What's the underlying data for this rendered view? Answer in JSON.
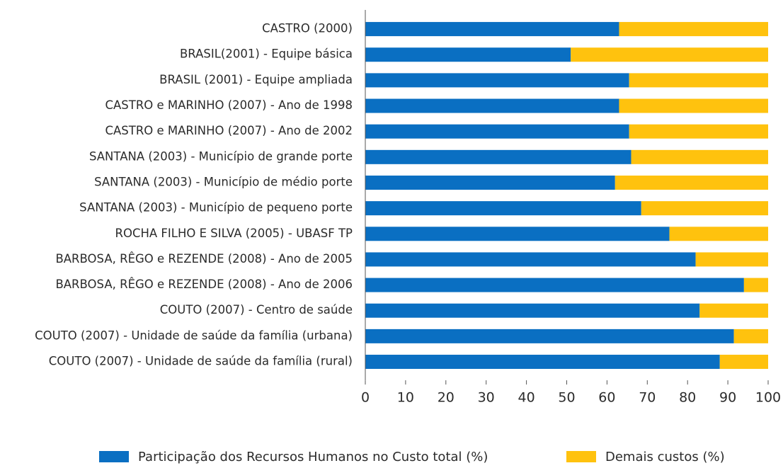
{
  "chart_data": {
    "type": "stacked-bar-horizontal",
    "categories": [
      "CASTRO (2000)",
      "BRASIL(2001) - Equipe básica",
      "BRASIL (2001) - Equipe ampliada",
      "CASTRO e MARINHO (2007) - Ano de 1998",
      "CASTRO e MARINHO (2007) - Ano de 2002",
      "SANTANA (2003) - Município de grande porte",
      "SANTANA (2003) - Município de médio porte",
      "SANTANA (2003) - Município de pequeno porte",
      "ROCHA FILHO E SILVA (2005) - UBASF TP",
      "BARBOSA, RÊGO e REZENDE (2008) - Ano de 2005",
      "BARBOSA, RÊGO e REZENDE (2008) - Ano de 2006",
      "COUTO (2007) - Centro de saúde",
      "COUTO (2007) - Unidade de saúde da família (urbana)",
      "COUTO (2007) - Unidade de saúde da família (rural)"
    ],
    "series": [
      {
        "name": "Participação dos Recursos Humanos no Custo total (%)",
        "color": "#0a6fc2",
        "values": [
          63,
          51,
          65.5,
          63,
          65.5,
          66,
          62,
          68.5,
          75.5,
          82,
          94,
          83,
          91.5,
          88
        ]
      },
      {
        "name": "Demais custos (%)",
        "color": "#ffc20e",
        "values": [
          37,
          49,
          34.5,
          37,
          34.5,
          34,
          38,
          31.5,
          24.5,
          18,
          6,
          17,
          8.5,
          12
        ]
      }
    ],
    "xlim": [
      0,
      100
    ],
    "xticks": [
      0,
      10,
      20,
      30,
      40,
      50,
      60,
      70,
      80,
      90,
      100
    ]
  }
}
